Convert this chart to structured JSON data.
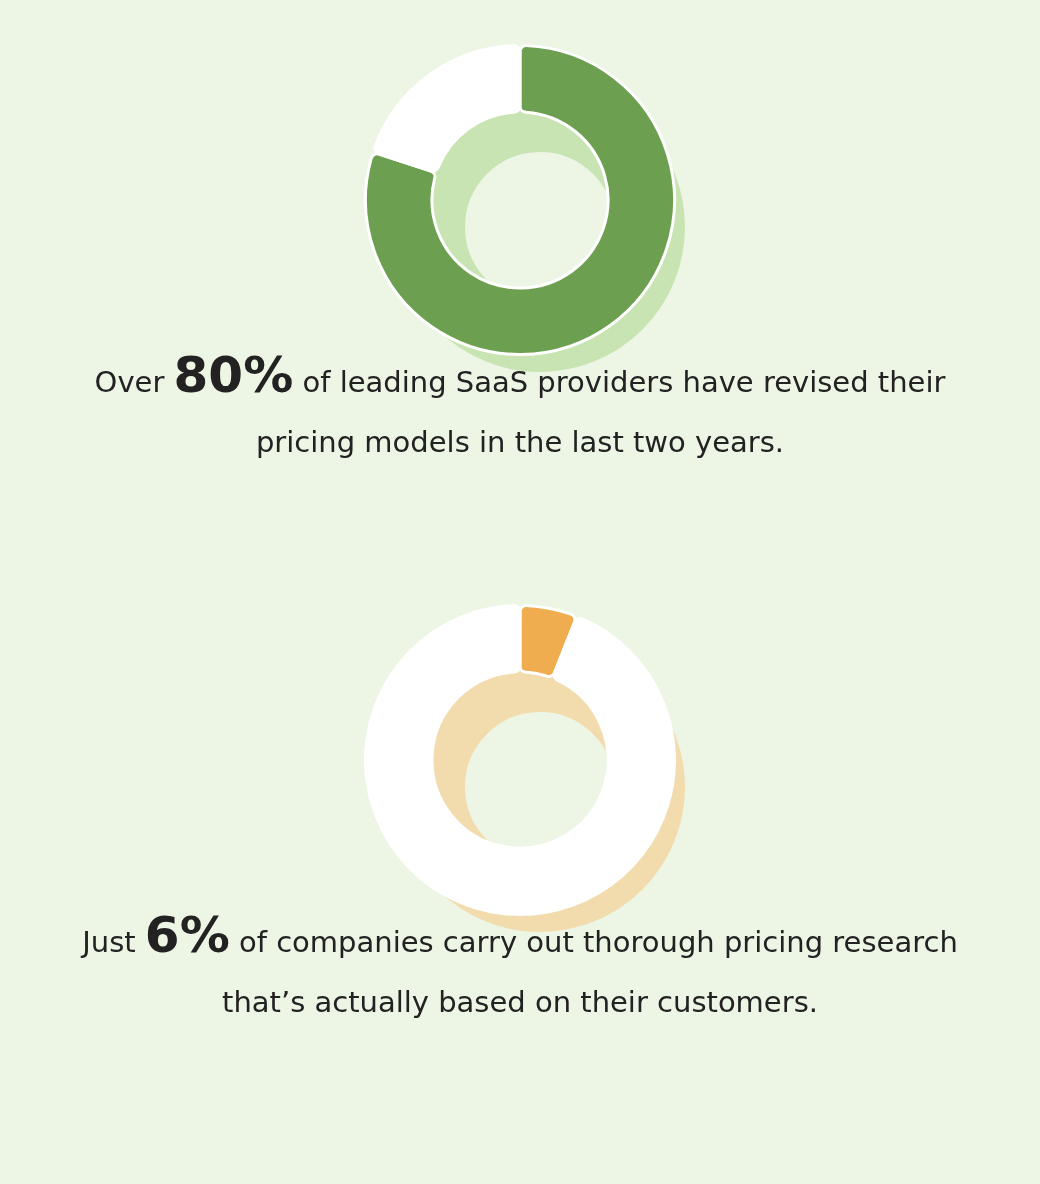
{
  "chart_data": [
    {
      "type": "donut",
      "title": "Over 80% of leading SaaS providers have revised their pricing models in the last two years.",
      "categories": [
        null,
        null
      ],
      "values": [
        80,
        20
      ],
      "colors": [
        "#6c9f4f",
        "#ffffff"
      ]
    },
    {
      "type": "donut",
      "title": "Just 6% of companies carry out thorough pricing research that’s actually based on their customers.",
      "categories": [
        null,
        null
      ],
      "values": [
        6,
        94
      ],
      "colors": [
        "#f0ad4f",
        "#ffffff"
      ]
    }
  ]
}
